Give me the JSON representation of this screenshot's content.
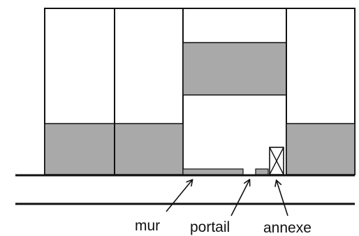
{
  "labels": {
    "mur": "mur",
    "portail": "portail",
    "annexe": "annexe"
  },
  "colors": {
    "stroke": "#111111",
    "fill_grey": "#a9a9a9",
    "background": "#ffffff"
  }
}
